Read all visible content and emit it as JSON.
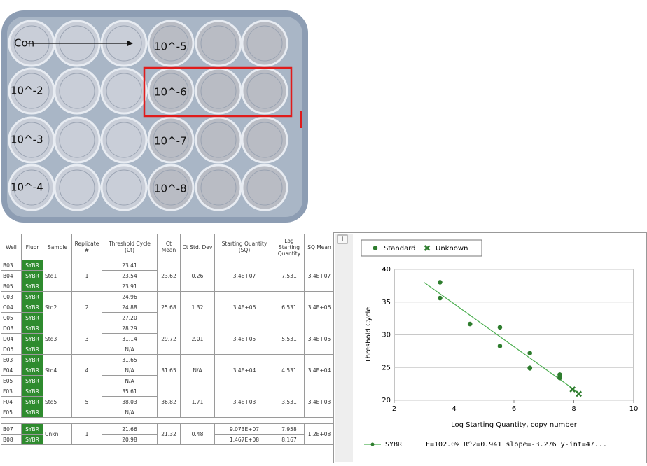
{
  "photo": {
    "labels": [
      "Con",
      "10^-5",
      "10^-2",
      "10^-6",
      "10^-3",
      "10^-7",
      "10^-4",
      "10^-8"
    ]
  },
  "table": {
    "headers": [
      "Well",
      "Fluor",
      "Sample",
      "Replicate #",
      "Threshold Cycle (Ct)",
      "Ct Mean",
      "Ct Std. Dev",
      "Starting Quantity (SQ)",
      "Log Starting Quantity",
      "SQ Mean"
    ],
    "groups": [
      {
        "sample": "Std1",
        "replicate": "1",
        "ct_mean": "23.62",
        "ct_sd": "0.26",
        "sq": "3.4E+07",
        "log": "7.531",
        "sq_mean": "3.4E+07",
        "wells": [
          {
            "well": "B03",
            "fluor": "SYBR",
            "ct": "23.41"
          },
          {
            "well": "B04",
            "fluor": "SYBR",
            "ct": "23.54"
          },
          {
            "well": "B05",
            "fluor": "SYBR",
            "ct": "23.91"
          }
        ]
      },
      {
        "sample": "Std2",
        "replicate": "2",
        "ct_mean": "25.68",
        "ct_sd": "1.32",
        "sq": "3.4E+06",
        "log": "6.531",
        "sq_mean": "3.4E+06",
        "wells": [
          {
            "well": "C03",
            "fluor": "SYBR",
            "ct": "24.96"
          },
          {
            "well": "C04",
            "fluor": "SYBR",
            "ct": "24.88"
          },
          {
            "well": "C05",
            "fluor": "SYBR",
            "ct": "27.20"
          }
        ]
      },
      {
        "sample": "Std3",
        "replicate": "3",
        "ct_mean": "29.72",
        "ct_sd": "2.01",
        "sq": "3.4E+05",
        "log": "5.531",
        "sq_mean": "3.4E+05",
        "wells": [
          {
            "well": "D03",
            "fluor": "SYBR",
            "ct": "28.29"
          },
          {
            "well": "D04",
            "fluor": "SYBR",
            "ct": "31.14"
          },
          {
            "well": "D05",
            "fluor": "SYBR",
            "ct": "N/A"
          }
        ]
      },
      {
        "sample": "Std4",
        "replicate": "4",
        "ct_mean": "31.65",
        "ct_sd": "N/A",
        "sq": "3.4E+04",
        "log": "4.531",
        "sq_mean": "3.4E+04",
        "wells": [
          {
            "well": "E03",
            "fluor": "SYBR",
            "ct": "31.65"
          },
          {
            "well": "E04",
            "fluor": "SYBR",
            "ct": "N/A"
          },
          {
            "well": "E05",
            "fluor": "SYBR",
            "ct": "N/A"
          }
        ]
      },
      {
        "sample": "Std5",
        "replicate": "5",
        "ct_mean": "36.82",
        "ct_sd": "1.71",
        "sq": "3.4E+03",
        "log": "3.531",
        "sq_mean": "3.4E+03",
        "wells": [
          {
            "well": "F03",
            "fluor": "SYBR",
            "ct": "35.61"
          },
          {
            "well": "F04",
            "fluor": "SYBR",
            "ct": "38.03"
          },
          {
            "well": "F05",
            "fluor": "SYBR",
            "ct": "N/A"
          }
        ]
      },
      {
        "sample": "Unkn",
        "replicate": "1",
        "ct_mean": "21.32",
        "ct_sd": "0.48",
        "sq_mean": "1.2E+08",
        "wells": [
          {
            "well": "B07",
            "fluor": "SYBR",
            "ct": "21.66",
            "sq": "9.073E+07",
            "log": "7.958"
          },
          {
            "well": "B08",
            "fluor": "SYBR",
            "ct": "20.98",
            "sq": "1.467E+08",
            "log": "8.167"
          }
        ]
      }
    ]
  },
  "chart_data": {
    "type": "scatter",
    "xlabel": "Log Starting Quantity, copy number",
    "ylabel": "Threshold Cycle",
    "xlim": [
      2,
      10
    ],
    "xticks": [
      2,
      4,
      6,
      8,
      10
    ],
    "ylim": [
      20,
      40
    ],
    "yticks": [
      20,
      25,
      30,
      35,
      40
    ],
    "grid": true,
    "series": [
      {
        "name": "Standard",
        "marker": "circle",
        "color": "#2e7d2e",
        "x": [
          7.531,
          7.531,
          7.531,
          6.531,
          6.531,
          6.531,
          5.531,
          5.531,
          4.531,
          3.531,
          3.531
        ],
        "y": [
          23.41,
          23.54,
          23.91,
          24.96,
          24.88,
          27.2,
          28.29,
          31.14,
          31.65,
          35.61,
          38.03
        ]
      },
      {
        "name": "Unknown",
        "marker": "cross",
        "color": "#2e7d2e",
        "x": [
          7.958,
          8.167
        ],
        "y": [
          21.66,
          20.98
        ]
      }
    ],
    "fit": {
      "name": "SYBR",
      "color": "#4caf50",
      "x": [
        3,
        8.2
      ],
      "y": [
        38,
        21
      ],
      "stats": "E=102.0% R^2=0.941 slope=-3.276 y-int=47..."
    }
  }
}
